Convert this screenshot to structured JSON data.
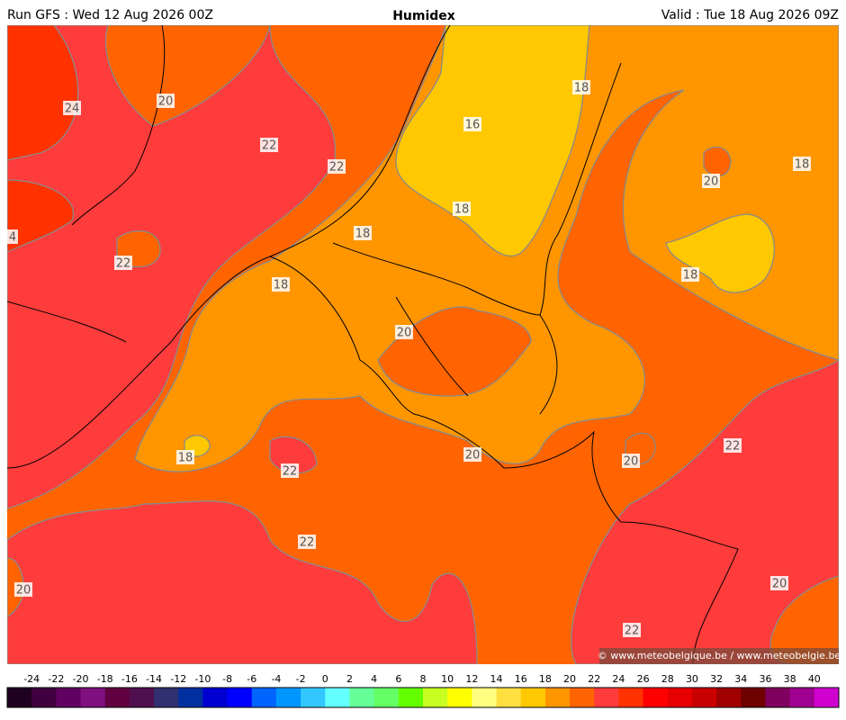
{
  "header": {
    "left": "Run GFS : Wed 12 Aug 2026 00Z",
    "title": "Humidex",
    "right": "Valid : Tue 18 Aug 2026 09Z"
  },
  "contour_labels": [
    24,
    20,
    22,
    22,
    4,
    22,
    18,
    18,
    18,
    16,
    18,
    18,
    20,
    18,
    20,
    18,
    22,
    20,
    20,
    22,
    22,
    20,
    20,
    22
  ],
  "copyright": "© www.meteobelgique.be / www.meteobelgie.be",
  "colorbar": {
    "ticks": [
      -24,
      -22,
      -20,
      -18,
      -16,
      -14,
      -12,
      -10,
      -8,
      -6,
      -4,
      -2,
      0,
      2,
      4,
      6,
      8,
      10,
      12,
      14,
      16,
      18,
      20,
      22,
      24,
      26,
      28,
      30,
      32,
      34,
      36,
      38,
      40
    ],
    "colors": [
      "#200020",
      "#400040",
      "#600060",
      "#801080",
      "#600040",
      "#501050",
      "#303070",
      "#0030a0",
      "#0000d0",
      "#0000ff",
      "#0064ff",
      "#0096ff",
      "#32c8ff",
      "#64ffff",
      "#64ff96",
      "#64ff64",
      "#64ff00",
      "#c8ff20",
      "#ffff00",
      "#ffff80",
      "#ffe040",
      "#ffc800",
      "#ff9600",
      "#ff6400",
      "#ff3c3c",
      "#ff3200",
      "#ff0000",
      "#e60000",
      "#c80000",
      "#a00000",
      "#6e0000",
      "#800060",
      "#a00090",
      "#d000d0"
    ]
  }
}
